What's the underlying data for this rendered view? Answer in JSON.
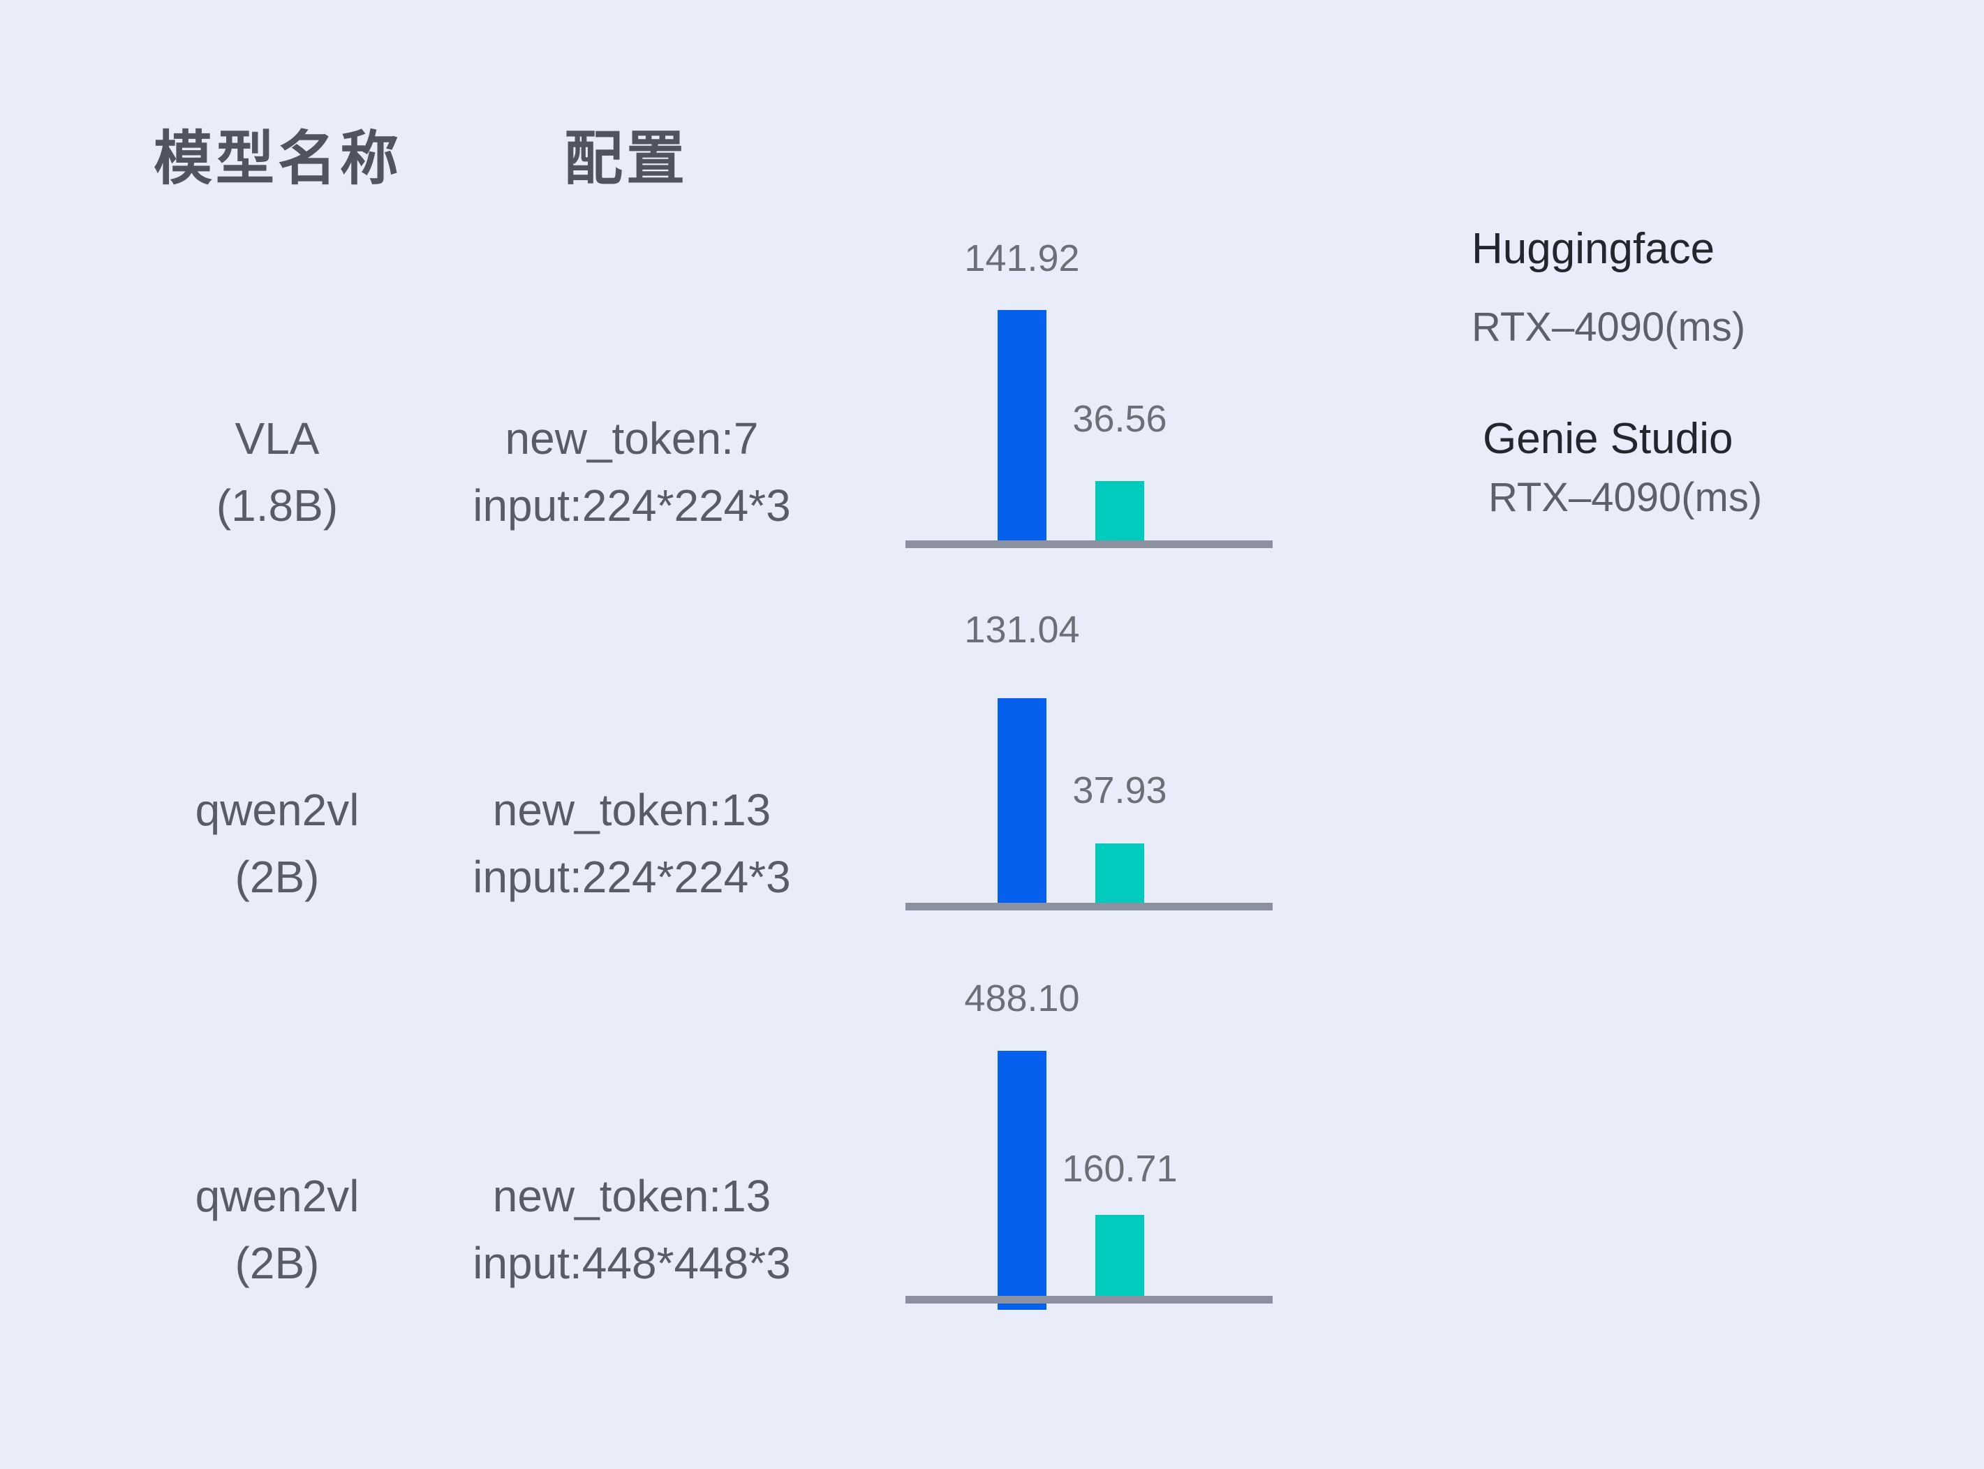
{
  "page": {
    "background_color": "#E8EDF9"
  },
  "header": {
    "model_column_label": "模型名称",
    "config_column_label": "配置"
  },
  "legend": {
    "items": [
      {
        "title": "Huggingface",
        "subtitle": "RTX–4090(ms)",
        "swatch_color": "#0560EE"
      },
      {
        "title": "Genie Studio",
        "subtitle": "RTX–4090(ms)",
        "swatch_color": "#02CBBD"
      }
    ]
  },
  "rows": [
    {
      "model_line1": "VLA",
      "model_line2": "(1.8B)",
      "config_line1": "new_token:7",
      "config_line2": "input:224*224*3",
      "hf_label": "141.92",
      "genie_label": "36.56"
    },
    {
      "model_line1": "qwen2vl",
      "model_line2": "(2B)",
      "config_line1": "new_token:13",
      "config_line2": "input:224*224*3",
      "hf_label": "131.04",
      "genie_label": "37.93"
    },
    {
      "model_line1": "qwen2vl",
      "model_line2": "(2B)",
      "config_line1": "new_token:13",
      "config_line2": "input:448*448*3",
      "hf_label": "488.10",
      "genie_label": "160.71"
    }
  ],
  "chart_data": {
    "type": "bar",
    "categories": [
      "VLA (1.8B) — new_token:7 input:224*224*3",
      "qwen2vl (2B) — new_token:13 input:224*224*3",
      "qwen2vl (2B) — new_token:13 input:448*448*3"
    ],
    "series": [
      {
        "name": "Huggingface RTX–4090(ms)",
        "color": "#0560EE",
        "values": [
          141.92,
          131.04,
          488.1
        ]
      },
      {
        "name": "Genie Studio RTX–4090(ms)",
        "color": "#02CBBD",
        "values": [
          36.56,
          37.93,
          160.71
        ]
      }
    ],
    "unit": "ms",
    "value_labels": "above each bar, two decimals",
    "layout": {
      "grid": false,
      "axes": "gray baseline only, one mini-chart per row",
      "per_row_independent_scale": true,
      "legend_position": "top-right"
    }
  }
}
